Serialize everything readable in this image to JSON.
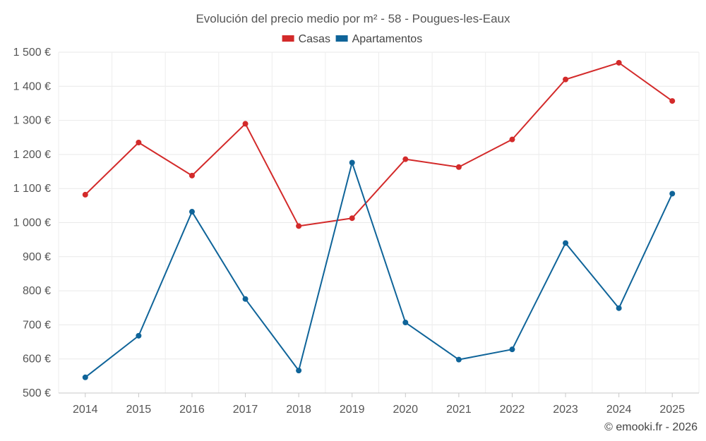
{
  "chart_data": {
    "type": "line",
    "title": "Evolución del precio medio por m² - 58 - Pougues-les-Eaux",
    "xlabel": "",
    "ylabel": "",
    "categories": [
      "2014",
      "2015",
      "2016",
      "2017",
      "2018",
      "2019",
      "2020",
      "2021",
      "2022",
      "2023",
      "2024",
      "2025"
    ],
    "ylim": [
      500,
      1500
    ],
    "yticks": [
      500,
      600,
      700,
      800,
      900,
      1000,
      1100,
      1200,
      1300,
      1400,
      1500
    ],
    "ytick_labels": [
      "500 €",
      "600 €",
      "700 €",
      "800 €",
      "900 €",
      "1 000 €",
      "1 100 €",
      "1 200 €",
      "1 300 €",
      "1 400 €",
      "1 500 €"
    ],
    "grid": true,
    "legend_position": "top-center",
    "series": [
      {
        "name": "Casas",
        "color": "#d32a2a",
        "values": [
          1082,
          1235,
          1138,
          1290,
          990,
          1013,
          1186,
          1163,
          1244,
          1420,
          1469,
          1357
        ]
      },
      {
        "name": "Apartamentos",
        "color": "#0f6499",
        "values": [
          546,
          668,
          1032,
          776,
          566,
          1176,
          707,
          598,
          628,
          940,
          749,
          1085
        ]
      }
    ],
    "annotation": "© emooki.fr - 2026"
  }
}
